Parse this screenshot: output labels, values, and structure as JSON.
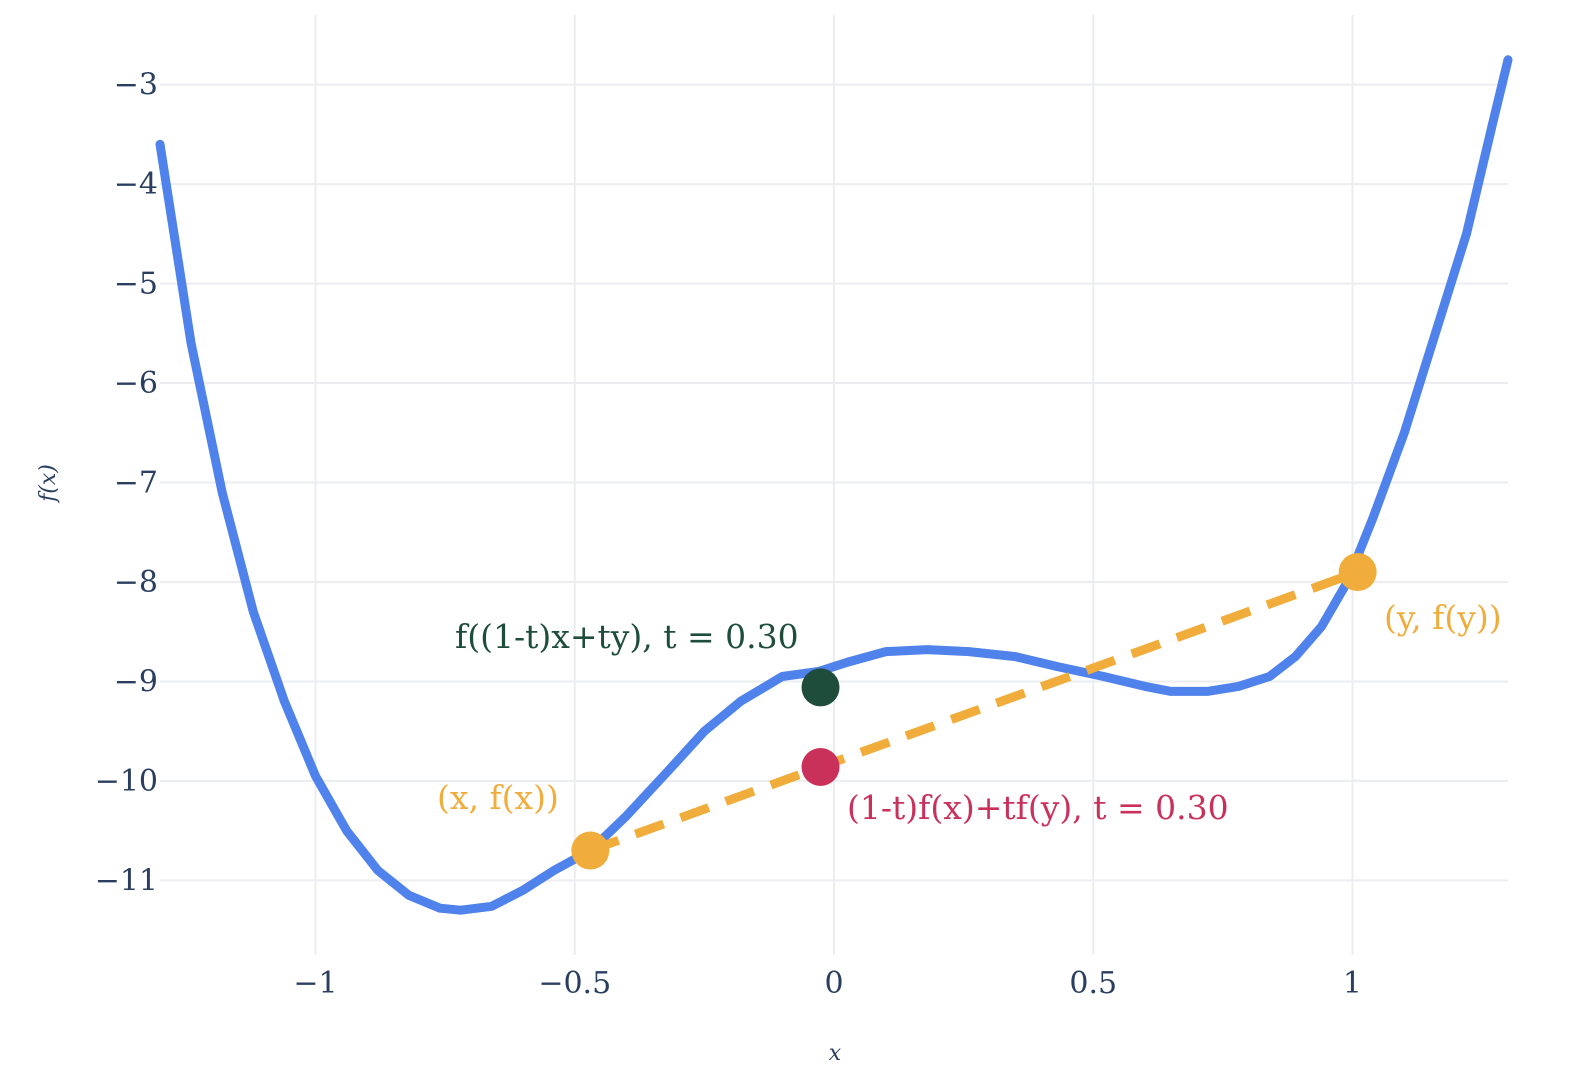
{
  "chart_data": {
    "type": "line",
    "xlabel": "x",
    "ylabel": "f(x)",
    "xlim": [
      -1.3,
      1.3
    ],
    "ylim": [
      -11.75,
      -2.3
    ],
    "x_ticks": [
      -1,
      -0.5,
      0,
      0.5,
      1
    ],
    "x_tick_labels": [
      "−1",
      "−0.5",
      "0",
      "0.5",
      "1"
    ],
    "y_ticks": [
      -3,
      -4,
      -5,
      -6,
      -7,
      -8,
      -9,
      -10,
      -11
    ],
    "y_tick_labels": [
      "−3",
      "−4",
      "−5",
      "−6",
      "−7",
      "−8",
      "−9",
      "−10",
      "−11"
    ],
    "grid": true,
    "curve": {
      "color": "#5082ec",
      "x": [
        -1.3,
        -1.24,
        -1.18,
        -1.12,
        -1.06,
        -1.0,
        -0.94,
        -0.88,
        -0.82,
        -0.76,
        -0.72,
        -0.66,
        -0.6,
        -0.54,
        -0.47,
        -0.4,
        -0.32,
        -0.25,
        -0.18,
        -0.1,
        -0.03,
        0.03,
        0.1,
        0.18,
        0.26,
        0.35,
        0.43,
        0.52,
        0.6,
        0.65,
        0.72,
        0.78,
        0.84,
        0.89,
        0.94,
        0.99,
        1.04,
        1.1,
        1.16,
        1.22,
        1.27,
        1.3
      ],
      "y": [
        -3.6,
        -5.6,
        -7.1,
        -8.3,
        -9.2,
        -9.95,
        -10.5,
        -10.9,
        -11.15,
        -11.28,
        -11.3,
        -11.26,
        -11.1,
        -10.9,
        -10.7,
        -10.35,
        -9.9,
        -9.5,
        -9.2,
        -8.95,
        -8.9,
        -8.8,
        -8.7,
        -8.68,
        -8.7,
        -8.75,
        -8.85,
        -8.95,
        -9.05,
        -9.1,
        -9.1,
        -9.05,
        -8.95,
        -8.75,
        -8.45,
        -8.0,
        -7.35,
        -6.5,
        -5.5,
        -4.5,
        -3.4,
        -2.75
      ]
    },
    "chord": {
      "color": "#f0ad3c",
      "x": [
        -0.47,
        1.01
      ],
      "y": [
        -10.7,
        -7.9
      ]
    },
    "points": [
      {
        "x": -0.47,
        "y": -10.7,
        "color": "#f0ad3c"
      },
      {
        "x": 1.01,
        "y": -7.9,
        "color": "#f0ad3c"
      },
      {
        "x": -0.026,
        "y": -9.06,
        "color": "#1f4d3b"
      },
      {
        "x": -0.026,
        "y": -9.86,
        "color": "#c9315b"
      }
    ],
    "annotations": [
      {
        "text": "(x, f(x))",
        "color": "#f0ad3c"
      },
      {
        "text": "(y, f(y))",
        "color": "#f0ad3c"
      },
      {
        "text": "f((1-t)x+ty), t = 0.30",
        "color": "#1f4d3b"
      },
      {
        "text": "(1-t)f(x)+tf(y), t = 0.30",
        "color": "#c9315b"
      }
    ]
  }
}
